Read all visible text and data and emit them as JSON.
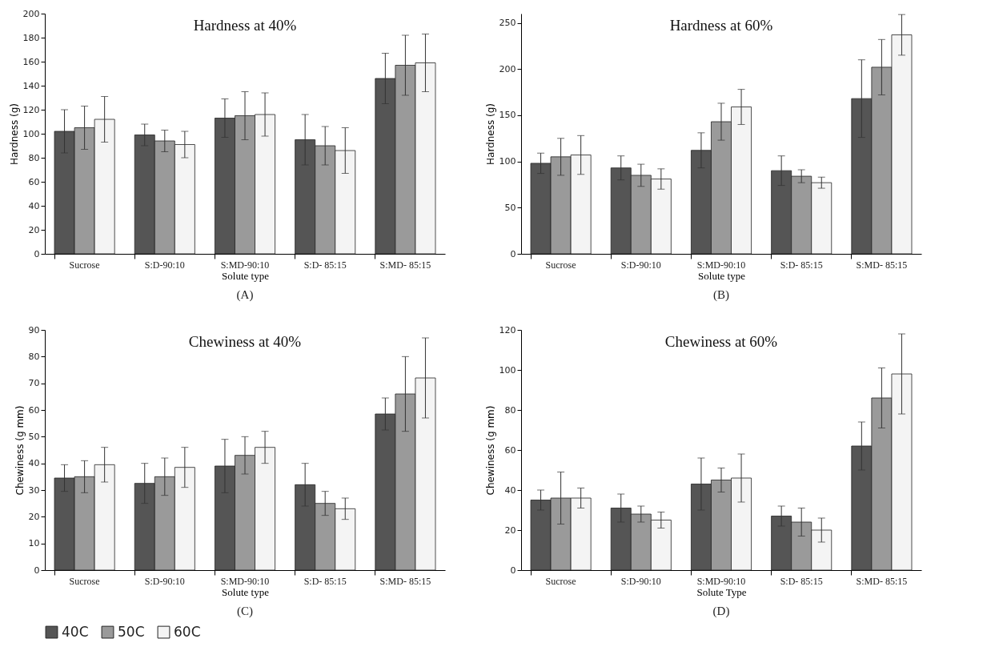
{
  "chart_data": [
    {
      "type": "bar",
      "title": "Hardness at 40%",
      "xlabel": "Solute type",
      "ylabel": "Hardness (g)",
      "annotations": [
        "(A)"
      ],
      "legend": "bottom",
      "categories": [
        "Sucrose",
        "S:D-90:10",
        "S:MD-90:10",
        "S:D- 85:15",
        "S:MD- 85:15"
      ],
      "ylim": [
        0,
        200
      ],
      "yticks": [
        0,
        20,
        40,
        60,
        80,
        100,
        120,
        140,
        160,
        180,
        200
      ],
      "series": [
        {
          "name": "40C",
          "color": "#555555",
          "values": [
            102,
            99,
            113,
            95,
            146
          ],
          "errors": [
            18,
            9,
            16,
            21,
            21
          ]
        },
        {
          "name": "50C",
          "color": "#9a9a9a",
          "values": [
            105,
            94,
            115,
            90,
            157
          ],
          "errors": [
            18,
            9,
            20,
            16,
            25
          ]
        },
        {
          "name": "60C",
          "color": "#f4f4f4",
          "values": [
            112,
            91,
            116,
            86,
            159
          ],
          "errors": [
            19,
            11,
            18,
            19,
            24
          ]
        }
      ]
    },
    {
      "type": "bar",
      "title": "Hardness at 60%",
      "xlabel": "Solute type",
      "ylabel": "Hardness (g)",
      "annotations": [
        "(B)"
      ],
      "legend": "bottom",
      "categories": [
        "Sucrose",
        "S:D-90:10",
        "S:MD-90:10",
        "S:D- 85:15",
        "S:MD- 85:15"
      ],
      "ylim": [
        0,
        260
      ],
      "yticks": [
        0,
        50,
        100,
        150,
        200,
        250
      ],
      "series": [
        {
          "name": "40C",
          "color": "#555555",
          "values": [
            98,
            93,
            112,
            90,
            168
          ],
          "errors": [
            11,
            13,
            19,
            16,
            42
          ]
        },
        {
          "name": "50C",
          "color": "#9a9a9a",
          "values": [
            105,
            85,
            143,
            84,
            202
          ],
          "errors": [
            20,
            12,
            20,
            7,
            30
          ]
        },
        {
          "name": "60C",
          "color": "#f4f4f4",
          "values": [
            107,
            81,
            159,
            77,
            237
          ],
          "errors": [
            21,
            11,
            19,
            6,
            22
          ]
        }
      ]
    },
    {
      "type": "bar",
      "title": "Chewiness at 40%",
      "xlabel": "Solute type",
      "ylabel": "Chewiness (g mm)",
      "annotations": [
        "(C)"
      ],
      "legend": "bottom",
      "categories": [
        "Sucrose",
        "S:D-90:10",
        "S:MD-90:10",
        "S:D- 85:15",
        "S:MD- 85:15"
      ],
      "ylim": [
        0,
        90
      ],
      "yticks": [
        0,
        10,
        20,
        30,
        40,
        50,
        60,
        70,
        80,
        90
      ],
      "series": [
        {
          "name": "40C",
          "color": "#555555",
          "values": [
            34.5,
            32.5,
            39,
            32,
            58.5
          ],
          "errors": [
            5,
            7.5,
            10,
            8,
            6
          ]
        },
        {
          "name": "50C",
          "color": "#9a9a9a",
          "values": [
            35,
            35,
            43,
            25,
            66
          ],
          "errors": [
            6,
            7,
            7,
            4.5,
            14
          ]
        },
        {
          "name": "60C",
          "color": "#f4f4f4",
          "values": [
            39.5,
            38.5,
            46,
            23,
            72
          ],
          "errors": [
            6.5,
            7.5,
            6,
            4,
            15
          ]
        }
      ]
    },
    {
      "type": "bar",
      "title": "Chewiness at 60%",
      "xlabel": "Solute Type",
      "ylabel": "Chewiness (g mm)",
      "annotations": [
        "(D)"
      ],
      "legend": "bottom",
      "categories": [
        "Sucrose",
        "S:D-90:10",
        "S:MD-90:10",
        "S:D- 85:15",
        "S:MD- 85:15"
      ],
      "ylim": [
        0,
        120
      ],
      "yticks": [
        0,
        20,
        40,
        60,
        80,
        100,
        120
      ],
      "series": [
        {
          "name": "40C",
          "color": "#555555",
          "values": [
            35,
            31,
            43,
            27,
            62
          ],
          "errors": [
            5,
            7,
            13,
            5,
            12
          ]
        },
        {
          "name": "50C",
          "color": "#9a9a9a",
          "values": [
            36,
            28,
            45,
            24,
            86
          ],
          "errors": [
            13,
            4,
            6,
            7,
            15
          ]
        },
        {
          "name": "60C",
          "color": "#f4f4f4",
          "values": [
            36,
            25,
            46,
            20,
            98
          ],
          "errors": [
            5,
            4,
            12,
            6,
            20
          ]
        }
      ]
    }
  ]
}
